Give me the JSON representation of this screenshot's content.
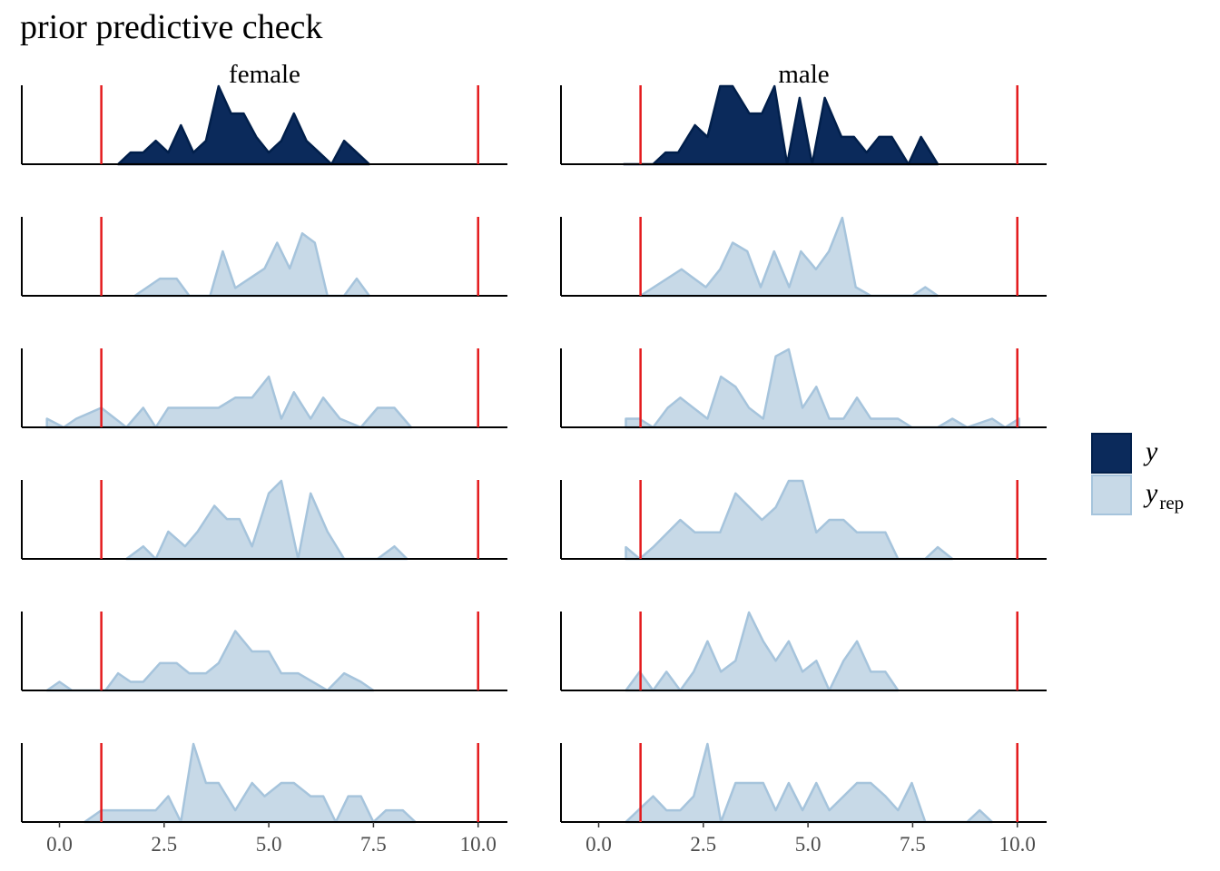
{
  "title": "prior predictive check",
  "chart_data": {
    "type": "area",
    "title": "prior predictive check",
    "facets": [
      "female",
      "male"
    ],
    "xlim": [
      -0.9,
      10.7
    ],
    "x_ticks": [
      0.0,
      2.5,
      5.0,
      7.5,
      10.0
    ],
    "x_tick_labels": [
      "0.0",
      "2.5",
      "5.0",
      "7.5",
      "10.0"
    ],
    "reference_lines": [
      1.0,
      10.0
    ],
    "reference_line_color": "#e41a1c",
    "colors": {
      "y": "#0b2a5b",
      "y_outline": "#011f4b",
      "y_rep": "#c7d9e7",
      "y_rep_outline": "#a6c4dc"
    },
    "legend": {
      "position": "right",
      "entries": [
        {
          "key": "y",
          "label": "y",
          "sub": ""
        },
        {
          "key": "y_rep",
          "label": "y",
          "sub": "rep"
        }
      ]
    },
    "panels": [
      {
        "row": 0,
        "facet": "female",
        "series": "y",
        "points": [
          [
            1.4,
            0
          ],
          [
            1.7,
            0.15
          ],
          [
            2.0,
            0.15
          ],
          [
            2.3,
            0.3
          ],
          [
            2.6,
            0.15
          ],
          [
            2.9,
            0.5
          ],
          [
            3.2,
            0.15
          ],
          [
            3.5,
            0.3
          ],
          [
            3.8,
            1.0
          ],
          [
            4.1,
            0.65
          ],
          [
            4.4,
            0.65
          ],
          [
            4.7,
            0.35
          ],
          [
            5.0,
            0.15
          ],
          [
            5.3,
            0.3
          ],
          [
            5.6,
            0.65
          ],
          [
            5.9,
            0.3
          ],
          [
            6.2,
            0.15
          ],
          [
            6.5,
            0
          ],
          [
            6.8,
            0.3
          ],
          [
            7.1,
            0.15
          ],
          [
            7.4,
            0
          ]
        ]
      },
      {
        "row": 0,
        "facet": "male",
        "series": "y",
        "points": [
          [
            0.6,
            0
          ],
          [
            1.3,
            0
          ],
          [
            1.6,
            0.15
          ],
          [
            1.9,
            0.15
          ],
          [
            2.3,
            0.5
          ],
          [
            2.6,
            0.35
          ],
          [
            2.9,
            1.0
          ],
          [
            3.2,
            1.0
          ],
          [
            3.6,
            0.65
          ],
          [
            3.9,
            0.65
          ],
          [
            4.2,
            1.0
          ],
          [
            4.5,
            0
          ],
          [
            4.8,
            0.85
          ],
          [
            5.1,
            0
          ],
          [
            5.4,
            0.85
          ],
          [
            5.8,
            0.35
          ],
          [
            6.1,
            0.35
          ],
          [
            6.4,
            0.15
          ],
          [
            6.7,
            0.35
          ],
          [
            7.0,
            0.35
          ],
          [
            7.4,
            0
          ],
          [
            7.7,
            0.35
          ],
          [
            8.1,
            0
          ]
        ]
      },
      {
        "row": 1,
        "facet": "female",
        "series": "y_rep",
        "points": [
          [
            1.8,
            0
          ],
          [
            2.4,
            0.22
          ],
          [
            2.8,
            0.22
          ],
          [
            3.1,
            0
          ],
          [
            3.6,
            0
          ],
          [
            3.9,
            0.57
          ],
          [
            4.2,
            0.1
          ],
          [
            4.9,
            0.35
          ],
          [
            5.2,
            0.68
          ],
          [
            5.5,
            0.35
          ],
          [
            5.8,
            0.8
          ],
          [
            6.1,
            0.68
          ],
          [
            6.4,
            0
          ],
          [
            6.8,
            0
          ],
          [
            7.1,
            0.22
          ],
          [
            7.4,
            0
          ]
        ]
      },
      {
        "row": 1,
        "facet": "male",
        "series": "y_rep",
        "points": [
          [
            1.0,
            0
          ],
          [
            1.98,
            0.34
          ],
          [
            2.56,
            0.11
          ],
          [
            2.9,
            0.34
          ],
          [
            3.2,
            0.68
          ],
          [
            3.55,
            0.57
          ],
          [
            3.87,
            0.11
          ],
          [
            4.19,
            0.57
          ],
          [
            4.55,
            0.11
          ],
          [
            4.83,
            0.57
          ],
          [
            5.19,
            0.34
          ],
          [
            5.5,
            0.57
          ],
          [
            5.82,
            1.0
          ],
          [
            6.14,
            0.11
          ],
          [
            6.5,
            0
          ],
          [
            7.5,
            0
          ],
          [
            7.8,
            0.11
          ],
          [
            8.1,
            0
          ]
        ]
      },
      {
        "row": 2,
        "facet": "female",
        "series": "y_rep",
        "points": [
          [
            -0.3,
            0.11
          ],
          [
            0.1,
            0
          ],
          [
            0.4,
            0.11
          ],
          [
            1.0,
            0.25
          ],
          [
            1.6,
            0
          ],
          [
            2.0,
            0.25
          ],
          [
            2.3,
            0
          ],
          [
            2.6,
            0.25
          ],
          [
            3.4,
            0.25
          ],
          [
            3.8,
            0.25
          ],
          [
            4.2,
            0.38
          ],
          [
            4.6,
            0.38
          ],
          [
            5.0,
            0.65
          ],
          [
            5.3,
            0.11
          ],
          [
            5.6,
            0.45
          ],
          [
            6.0,
            0.11
          ],
          [
            6.3,
            0.38
          ],
          [
            6.7,
            0.11
          ],
          [
            7.2,
            0
          ],
          [
            7.6,
            0.25
          ],
          [
            8.0,
            0.25
          ],
          [
            8.4,
            0
          ]
        ]
      },
      {
        "row": 2,
        "facet": "male",
        "series": "y_rep",
        "points": [
          [
            0.65,
            0.11
          ],
          [
            0.97,
            0.11
          ],
          [
            1.3,
            0
          ],
          [
            1.65,
            0.25
          ],
          [
            1.95,
            0.38
          ],
          [
            2.6,
            0.11
          ],
          [
            2.92,
            0.65
          ],
          [
            3.27,
            0.52
          ],
          [
            3.59,
            0.25
          ],
          [
            3.93,
            0.11
          ],
          [
            4.23,
            0.91
          ],
          [
            4.54,
            1.0
          ],
          [
            4.87,
            0.25
          ],
          [
            5.2,
            0.52
          ],
          [
            5.51,
            0.11
          ],
          [
            5.85,
            0.11
          ],
          [
            6.17,
            0.38
          ],
          [
            6.5,
            0.11
          ],
          [
            7.15,
            0.11
          ],
          [
            7.48,
            0
          ],
          [
            8.1,
            0
          ],
          [
            8.45,
            0.11
          ],
          [
            8.8,
            0
          ],
          [
            9.4,
            0.11
          ],
          [
            9.71,
            0
          ],
          [
            10.04,
            0.11
          ]
        ]
      },
      {
        "row": 3,
        "facet": "female",
        "series": "y_rep",
        "points": [
          [
            1.6,
            0
          ],
          [
            2.0,
            0.16
          ],
          [
            2.3,
            0
          ],
          [
            2.6,
            0.35
          ],
          [
            3.0,
            0.16
          ],
          [
            3.3,
            0.35
          ],
          [
            3.7,
            0.68
          ],
          [
            4.0,
            0.51
          ],
          [
            4.3,
            0.51
          ],
          [
            4.6,
            0.16
          ],
          [
            5.0,
            0.84
          ],
          [
            5.3,
            1.0
          ],
          [
            5.7,
            0
          ],
          [
            6.0,
            0.84
          ],
          [
            6.4,
            0.35
          ],
          [
            6.8,
            0
          ],
          [
            7.6,
            0
          ],
          [
            8.0,
            0.16
          ],
          [
            8.3,
            0
          ]
        ]
      },
      {
        "row": 3,
        "facet": "male",
        "series": "y_rep",
        "points": [
          [
            0.65,
            0.15
          ],
          [
            0.98,
            0
          ],
          [
            1.3,
            0.15
          ],
          [
            1.95,
            0.5
          ],
          [
            2.3,
            0.34
          ],
          [
            2.9,
            0.34
          ],
          [
            3.27,
            0.84
          ],
          [
            3.9,
            0.5
          ],
          [
            4.23,
            0.66
          ],
          [
            4.54,
            1.0
          ],
          [
            4.87,
            1.0
          ],
          [
            5.2,
            0.34
          ],
          [
            5.51,
            0.5
          ],
          [
            5.85,
            0.5
          ],
          [
            6.17,
            0.34
          ],
          [
            6.5,
            0.34
          ],
          [
            6.85,
            0.34
          ],
          [
            7.15,
            0
          ],
          [
            7.8,
            0
          ],
          [
            8.1,
            0.15
          ],
          [
            8.45,
            0
          ]
        ]
      },
      {
        "row": 4,
        "facet": "female",
        "series": "y_rep",
        "points": [
          [
            -0.3,
            0
          ],
          [
            0.0,
            0.11
          ],
          [
            0.3,
            0
          ],
          [
            1.1,
            0
          ],
          [
            1.4,
            0.22
          ],
          [
            1.7,
            0.11
          ],
          [
            2.0,
            0.11
          ],
          [
            2.4,
            0.35
          ],
          [
            2.8,
            0.35
          ],
          [
            3.1,
            0.22
          ],
          [
            3.5,
            0.22
          ],
          [
            3.8,
            0.35
          ],
          [
            4.2,
            0.76
          ],
          [
            4.6,
            0.5
          ],
          [
            5.0,
            0.5
          ],
          [
            5.3,
            0.22
          ],
          [
            5.7,
            0.22
          ],
          [
            6.4,
            0
          ],
          [
            6.8,
            0.22
          ],
          [
            7.2,
            0.11
          ],
          [
            7.5,
            0
          ]
        ]
      },
      {
        "row": 4,
        "facet": "male",
        "series": "y_rep",
        "points": [
          [
            0.65,
            0
          ],
          [
            0.98,
            0.24
          ],
          [
            1.3,
            0
          ],
          [
            1.62,
            0.24
          ],
          [
            1.95,
            0
          ],
          [
            2.27,
            0.24
          ],
          [
            2.6,
            0.63
          ],
          [
            2.92,
            0.24
          ],
          [
            3.27,
            0.38
          ],
          [
            3.59,
            1.0
          ],
          [
            3.93,
            0.63
          ],
          [
            4.23,
            0.38
          ],
          [
            4.54,
            0.63
          ],
          [
            4.87,
            0.24
          ],
          [
            5.2,
            0.38
          ],
          [
            5.51,
            0
          ],
          [
            5.85,
            0.38
          ],
          [
            6.17,
            0.63
          ],
          [
            6.5,
            0.24
          ],
          [
            6.85,
            0.24
          ],
          [
            7.15,
            0
          ]
        ]
      },
      {
        "row": 5,
        "facet": "female",
        "series": "y_rep",
        "points": [
          [
            0.6,
            0
          ],
          [
            1.0,
            0.15
          ],
          [
            1.9,
            0.15
          ],
          [
            2.3,
            0.15
          ],
          [
            2.6,
            0.33
          ],
          [
            2.9,
            0
          ],
          [
            3.2,
            1.0
          ],
          [
            3.5,
            0.5
          ],
          [
            3.8,
            0.5
          ],
          [
            4.2,
            0.15
          ],
          [
            4.6,
            0.5
          ],
          [
            4.9,
            0.33
          ],
          [
            5.3,
            0.5
          ],
          [
            5.6,
            0.5
          ],
          [
            6.0,
            0.33
          ],
          [
            6.3,
            0.33
          ],
          [
            6.6,
            0
          ],
          [
            6.9,
            0.33
          ],
          [
            7.2,
            0.33
          ],
          [
            7.5,
            0
          ],
          [
            7.8,
            0.15
          ],
          [
            8.2,
            0.15
          ],
          [
            8.5,
            0
          ]
        ]
      },
      {
        "row": 5,
        "facet": "male",
        "series": "y_rep",
        "points": [
          [
            0.65,
            0
          ],
          [
            1.3,
            0.33
          ],
          [
            1.62,
            0.15
          ],
          [
            1.95,
            0.15
          ],
          [
            2.27,
            0.33
          ],
          [
            2.6,
            1.0
          ],
          [
            2.92,
            0
          ],
          [
            3.27,
            0.5
          ],
          [
            3.59,
            0.5
          ],
          [
            3.93,
            0.5
          ],
          [
            4.23,
            0.15
          ],
          [
            4.54,
            0.5
          ],
          [
            4.87,
            0.15
          ],
          [
            5.2,
            0.5
          ],
          [
            5.51,
            0.15
          ],
          [
            5.85,
            0.33
          ],
          [
            6.17,
            0.5
          ],
          [
            6.5,
            0.5
          ],
          [
            6.85,
            0.33
          ],
          [
            7.15,
            0.15
          ],
          [
            7.48,
            0.5
          ],
          [
            7.8,
            0
          ],
          [
            8.8,
            0
          ],
          [
            9.1,
            0.15
          ],
          [
            9.4,
            0
          ]
        ]
      }
    ]
  }
}
